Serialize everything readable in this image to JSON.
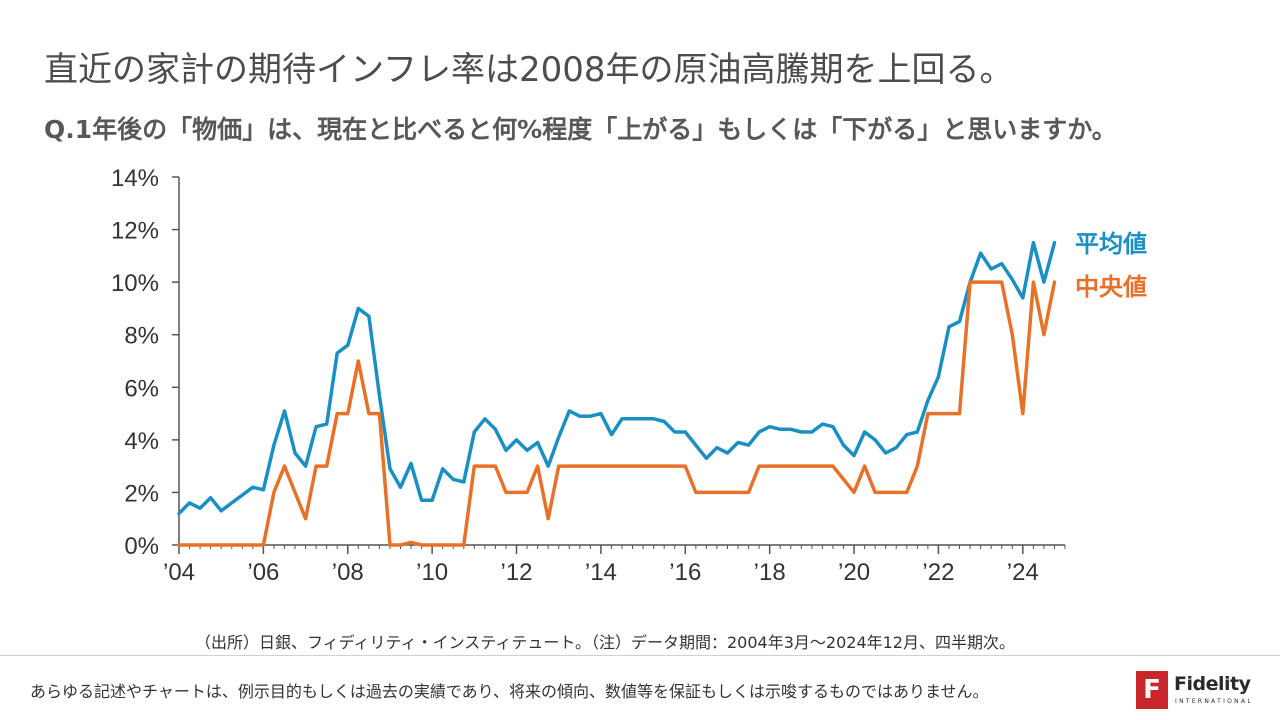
{
  "title": "直近の家計の期待インフレ率は2008年の原油高騰期を上回る。",
  "subtitle": "Q.1年後の「物価」は、現在と比べると何%程度「上がる」もしくは「下がる」と思いますか。",
  "source_note": "（出所）日銀、フィディリティ・インスティテュート。（注）データ期間：2004年3月～2024年12月、四半期次。",
  "disclaimer": "あらゆる記述やチャートは、例示目的もしくは過去の実績であり、将来の傾向、数値等を保証もしくは示唆するものではありません。",
  "logo": {
    "mark": "F",
    "word": "Fidelity",
    "sub": "INTERNATIONAL"
  },
  "colors": {
    "mean": "#1a8fc4",
    "median": "#e8712a",
    "axis": "#555555",
    "text": "#333333"
  },
  "chart_data": {
    "type": "line",
    "ylim": [
      0,
      14
    ],
    "xlim": [
      2004.0,
      2025.0
    ],
    "y_ticks": [
      0,
      2,
      4,
      6,
      8,
      10,
      12,
      14
    ],
    "y_tick_labels": [
      "0%",
      "2%",
      "4%",
      "6%",
      "8%",
      "10%",
      "12%",
      "14%"
    ],
    "x_ticks": [
      2004,
      2006,
      2008,
      2010,
      2012,
      2014,
      2016,
      2018,
      2020,
      2022,
      2024
    ],
    "x_tick_labels": [
      "’04",
      "’06",
      "’08",
      "’10",
      "’12",
      "’14",
      "’16",
      "’18",
      "’20",
      "’22",
      "’24"
    ],
    "x": [
      2004.0,
      2004.25,
      2004.5,
      2004.75,
      2005.0,
      2005.25,
      2005.5,
      2005.75,
      2006.0,
      2006.25,
      2006.5,
      2006.75,
      2007.0,
      2007.25,
      2007.5,
      2007.75,
      2008.0,
      2008.25,
      2008.5,
      2008.75,
      2009.0,
      2009.25,
      2009.5,
      2009.75,
      2010.0,
      2010.25,
      2010.5,
      2010.75,
      2011.0,
      2011.25,
      2011.5,
      2011.75,
      2012.0,
      2012.25,
      2012.5,
      2012.75,
      2013.0,
      2013.25,
      2013.5,
      2013.75,
      2014.0,
      2014.25,
      2014.5,
      2014.75,
      2015.0,
      2015.25,
      2015.5,
      2015.75,
      2016.0,
      2016.25,
      2016.5,
      2016.75,
      2017.0,
      2017.25,
      2017.5,
      2017.75,
      2018.0,
      2018.25,
      2018.5,
      2018.75,
      2019.0,
      2019.25,
      2019.5,
      2019.75,
      2020.0,
      2020.25,
      2020.5,
      2020.75,
      2021.0,
      2021.25,
      2021.5,
      2021.75,
      2022.0,
      2022.25,
      2022.5,
      2022.75,
      2023.0,
      2023.25,
      2023.5,
      2023.75,
      2024.0,
      2024.25,
      2024.5,
      2024.75
    ],
    "series": [
      {
        "name": "平均値",
        "color": "#1a8fc4",
        "values": [
          1.2,
          1.6,
          1.4,
          1.8,
          1.3,
          1.6,
          1.9,
          2.2,
          2.1,
          3.8,
          5.1,
          3.5,
          3.0,
          4.5,
          4.6,
          7.3,
          7.6,
          9.0,
          8.7,
          5.7,
          2.9,
          2.2,
          3.1,
          1.7,
          1.7,
          2.9,
          2.5,
          2.4,
          4.3,
          4.8,
          4.4,
          3.6,
          4.0,
          3.6,
          3.9,
          3.0,
          4.1,
          5.1,
          4.9,
          4.9,
          5.0,
          4.2,
          4.8,
          4.8,
          4.8,
          4.8,
          4.7,
          4.3,
          4.3,
          3.8,
          3.3,
          3.7,
          3.5,
          3.9,
          3.8,
          4.3,
          4.5,
          4.4,
          4.4,
          4.3,
          4.3,
          4.6,
          4.5,
          3.8,
          3.4,
          4.3,
          4.0,
          3.5,
          3.7,
          4.2,
          4.3,
          5.5,
          6.4,
          8.3,
          8.5,
          10.0,
          11.1,
          10.5,
          10.7,
          10.1,
          9.4,
          11.5,
          10.0,
          11.5
        ]
      },
      {
        "name": "中央値",
        "color": "#e8712a",
        "values": [
          0,
          0,
          0,
          0,
          0,
          0,
          0,
          0,
          0,
          2,
          3,
          2,
          1,
          3,
          3,
          5,
          5,
          7,
          5,
          5,
          0,
          0,
          0.1,
          0,
          0,
          0,
          0,
          0,
          3,
          3,
          3,
          2,
          2,
          2,
          3,
          1,
          3,
          3,
          3,
          3,
          3,
          3,
          3,
          3,
          3,
          3,
          3,
          3,
          3,
          2,
          2,
          2,
          2,
          2,
          2,
          3,
          3,
          3,
          3,
          3,
          3,
          3,
          3,
          2.5,
          2,
          3,
          2,
          2,
          2,
          2,
          3,
          5,
          5,
          5,
          5,
          10,
          10,
          10,
          10,
          8,
          5,
          10,
          8,
          10
        ]
      }
    ]
  }
}
